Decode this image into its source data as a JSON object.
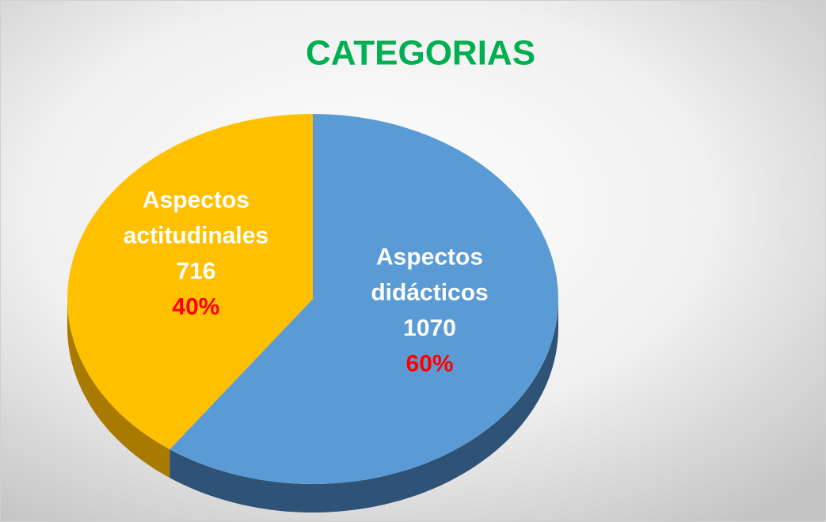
{
  "chart_data": {
    "type": "pie3d",
    "title": "CATEGORIAS",
    "categories": [
      "Aspectos didácticos",
      "Aspectos actitudinales"
    ],
    "values": [
      1070,
      716
    ],
    "percentages": [
      60,
      40
    ],
    "percent_labels": [
      "60%",
      "40%"
    ],
    "colors": [
      "#5b9bd5",
      "#ffc000"
    ],
    "side_colors": [
      "#2f5376",
      "#a87a00"
    ]
  }
}
